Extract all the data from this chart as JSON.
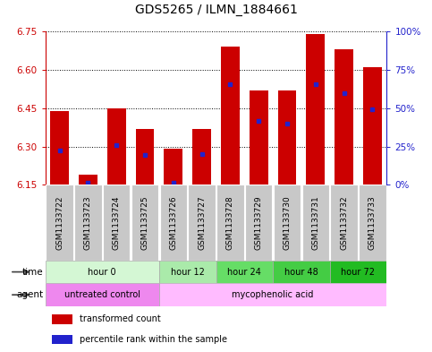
{
  "title": "GDS5265 / ILMN_1884661",
  "samples": [
    "GSM1133722",
    "GSM1133723",
    "GSM1133724",
    "GSM1133725",
    "GSM1133726",
    "GSM1133727",
    "GSM1133728",
    "GSM1133729",
    "GSM1133730",
    "GSM1133731",
    "GSM1133732",
    "GSM1133733"
  ],
  "bar_tops": [
    6.44,
    6.19,
    6.45,
    6.37,
    6.29,
    6.37,
    6.69,
    6.52,
    6.52,
    6.74,
    6.68,
    6.61
  ],
  "bar_bottom": 6.15,
  "blue_marker_values": [
    6.285,
    6.158,
    6.305,
    6.268,
    6.158,
    6.27,
    6.545,
    6.4,
    6.39,
    6.545,
    6.51,
    6.445
  ],
  "ylim_left": [
    6.15,
    6.75
  ],
  "yticks_left": [
    6.15,
    6.3,
    6.45,
    6.6,
    6.75
  ],
  "ylim_right": [
    0,
    100
  ],
  "yticks_right": [
    0,
    25,
    50,
    75,
    100
  ],
  "yticklabels_right": [
    "0%",
    "25%",
    "50%",
    "75%",
    "100%"
  ],
  "bar_color": "#cc0000",
  "blue_color": "#2222cc",
  "left_tick_color": "#cc0000",
  "right_tick_color": "#2222cc",
  "time_groups": [
    {
      "label": "hour 0",
      "start": 0,
      "end": 4,
      "color": "#d4f7d4"
    },
    {
      "label": "hour 12",
      "start": 4,
      "end": 6,
      "color": "#aaeaaa"
    },
    {
      "label": "hour 24",
      "start": 6,
      "end": 8,
      "color": "#66dd66"
    },
    {
      "label": "hour 48",
      "start": 8,
      "end": 10,
      "color": "#44cc44"
    },
    {
      "label": "hour 72",
      "start": 10,
      "end": 12,
      "color": "#22bb22"
    }
  ],
  "agent_groups": [
    {
      "label": "untreated control",
      "start": 0,
      "end": 4,
      "color": "#ee88ee"
    },
    {
      "label": "mycophenolic acid",
      "start": 4,
      "end": 12,
      "color": "#ffbbff"
    }
  ],
  "legend1_label": "transformed count",
  "legend2_label": "percentile rank within the sample",
  "bar_width": 0.65,
  "label_fontsize": 7,
  "tick_fontsize": 7.5,
  "title_fontsize": 10
}
